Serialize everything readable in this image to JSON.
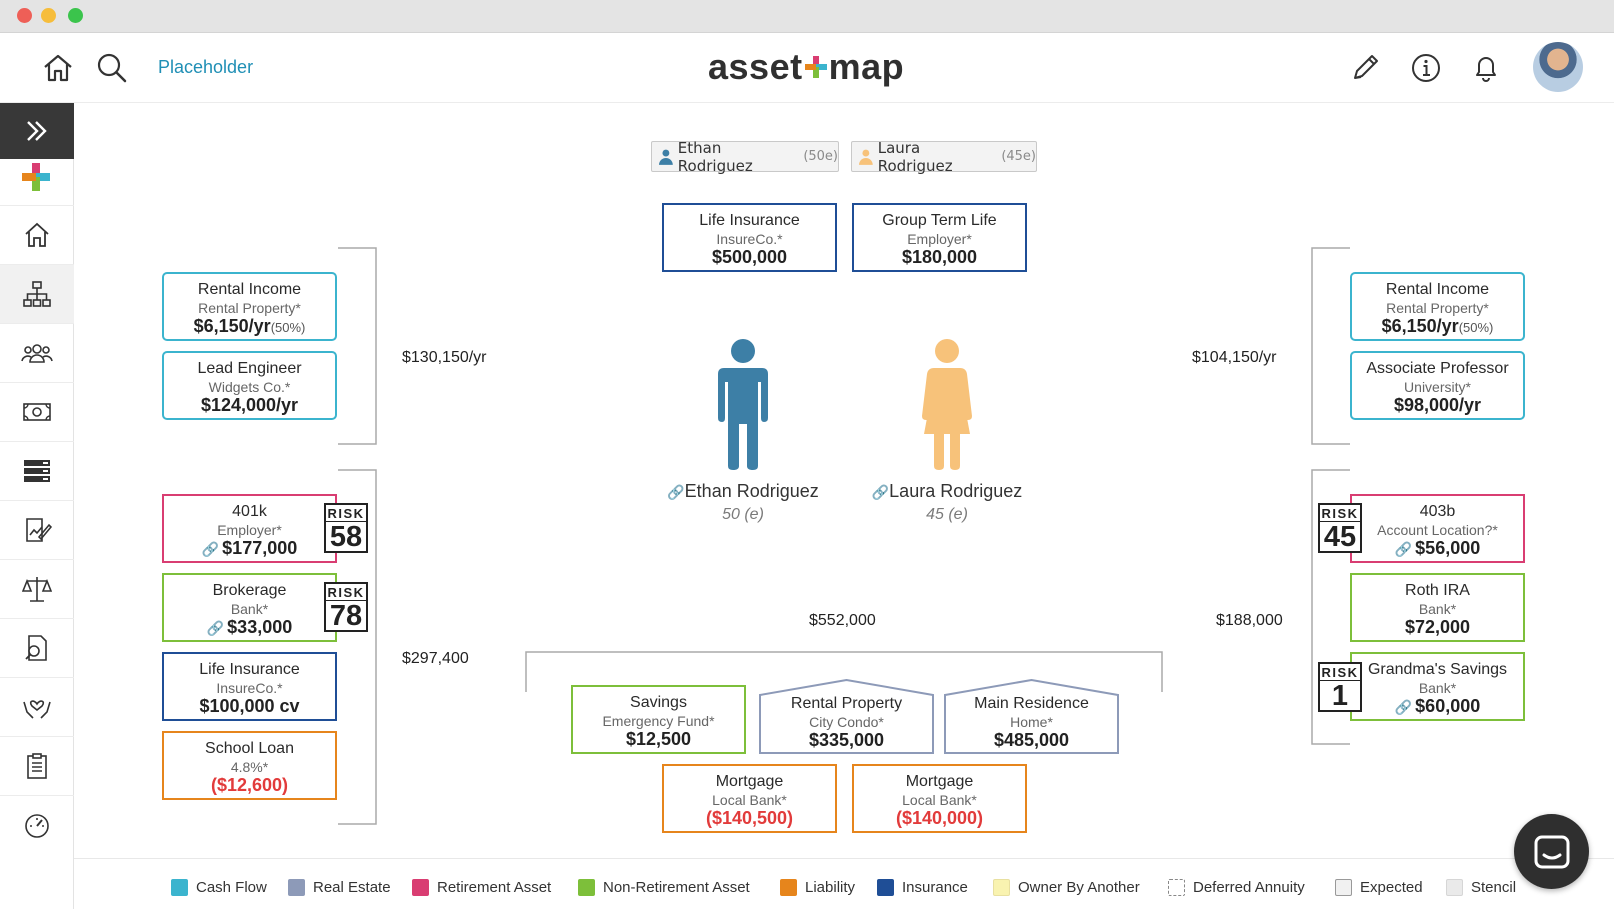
{
  "header": {
    "placeholder_link": "Placeholder",
    "logo_left": "asset",
    "logo_right": "map"
  },
  "persons": [
    {
      "name": "Ethan Rodriguez",
      "age_tag": "(50e)",
      "age_label": "50 (e)",
      "color": "#3d7fa6"
    },
    {
      "name": "Laura Rodriguez",
      "age_tag": "(45e)",
      "age_label": "45 (e)",
      "color": "#f7c27a"
    }
  ],
  "insurance_top": [
    {
      "title": "Life Insurance",
      "sub": "InsureCo.*",
      "value": "$500,000"
    },
    {
      "title": "Group Term Life",
      "sub": "Employer*",
      "value": "$180,000"
    }
  ],
  "left_income": {
    "total": "$130,150/yr",
    "cards": [
      {
        "title": "Rental Income",
        "sub": "Rental Property*",
        "value": "$6,150/yr",
        "pct": "(50%)"
      },
      {
        "title": "Lead Engineer",
        "sub": "Widgets Co.*",
        "value": "$124,000/yr",
        "pct": ""
      }
    ]
  },
  "right_income": {
    "total": "$104,150/yr",
    "cards": [
      {
        "title": "Rental Income",
        "sub": "Rental Property*",
        "value": "$6,150/yr",
        "pct": "(50%)"
      },
      {
        "title": "Associate Professor",
        "sub": "University*",
        "value": "$98,000/yr",
        "pct": ""
      }
    ]
  },
  "left_assets": {
    "total": "$297,400",
    "cards": [
      {
        "title": "401k",
        "sub": "Employer*",
        "value": "$177,000",
        "risk": "58"
      },
      {
        "title": "Brokerage",
        "sub": "Bank*",
        "value": "$33,000",
        "risk": "78"
      },
      {
        "title": "Life Insurance",
        "sub": "InsureCo.*",
        "value": "$100,000 cv"
      },
      {
        "title": "School Loan",
        "sub": "4.8%*",
        "value": "($12,600)"
      }
    ]
  },
  "right_assets": {
    "total": "$188,000",
    "cards": [
      {
        "title": "403b",
        "sub": "Account Location?*",
        "value": "$56,000",
        "risk": "45"
      },
      {
        "title": "Roth IRA",
        "sub": "Bank*",
        "value": "$72,000"
      },
      {
        "title": "Grandma's Savings",
        "sub": "Bank*",
        "value": "$60,000",
        "risk": "1"
      }
    ]
  },
  "joint": {
    "total": "$552,000",
    "savings": {
      "title": "Savings",
      "sub": "Emergency Fund*",
      "value": "$12,500"
    },
    "houses": [
      {
        "title": "Rental Property",
        "sub": "City Condo*",
        "value": "$335,000"
      },
      {
        "title": "Main Residence",
        "sub": "Home*",
        "value": "$485,000"
      }
    ],
    "mortgages": [
      {
        "title": "Mortgage",
        "sub": "Local Bank*",
        "value": "($140,500)"
      },
      {
        "title": "Mortgage",
        "sub": "Local Bank*",
        "value": "($140,000)"
      }
    ]
  },
  "risk_label": "RISK",
  "legend": [
    {
      "label": "Cash Flow",
      "color": "#3bb4ce"
    },
    {
      "label": "Real Estate",
      "color": "#8d9ab8"
    },
    {
      "label": "Retirement Asset",
      "color": "#d93d72"
    },
    {
      "label": "Non-Retirement Asset",
      "color": "#7dbf3a"
    },
    {
      "label": "Liability",
      "color": "#e6851c"
    },
    {
      "label": "Insurance",
      "color": "#1f4e96"
    },
    {
      "label": "Owner By Another",
      "color": "#f9f3b0"
    },
    {
      "label": "Deferred Annuity",
      "color": "#ffffff"
    },
    {
      "label": "Expected",
      "color": "#f1f1f1"
    },
    {
      "label": "Stencil",
      "color": "#eaeaea"
    }
  ]
}
